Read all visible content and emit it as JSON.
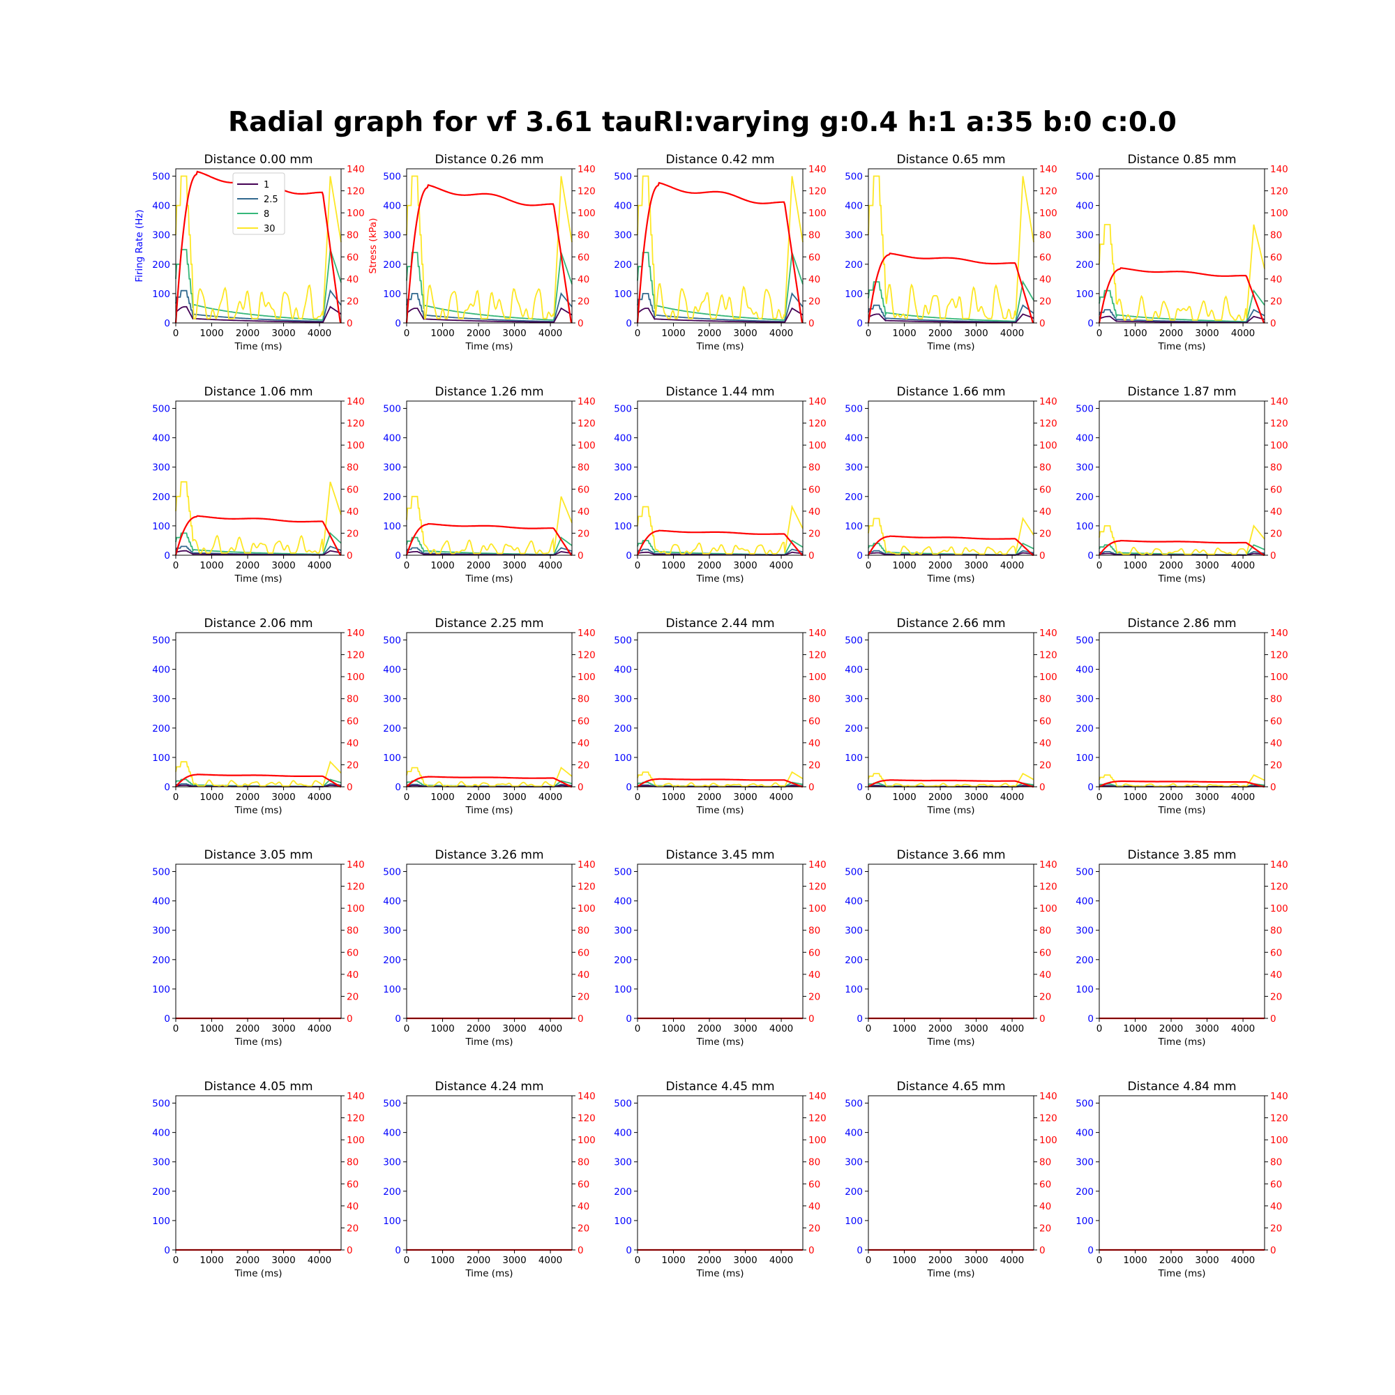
{
  "figure": {
    "title": "Radial graph for vf 3.61 tauRI:varying g:0.4 h:1 a:35 b:0 c:0.0",
    "xlabel": "Time (ms)",
    "ylabel_left": "Firing Rate (Hz)",
    "ylabel_right": "Stress (kPa)",
    "legend": [
      "1",
      "2.5",
      "8",
      "30"
    ]
  },
  "colors": {
    "series_1": "#440154",
    "series_2_5": "#31688e",
    "series_8": "#35b779",
    "series_30": "#fde725",
    "stress": "#ff0000",
    "left_axis": "#0000ff",
    "right_axis": "#ff0000"
  },
  "chart_data": {
    "type": "line",
    "layout": "5x5 small multiples",
    "x_ticks": [
      0,
      1000,
      2000,
      3000,
      4000
    ],
    "xlim": [
      0,
      4600
    ],
    "y_left_ticks": [
      0,
      100,
      200,
      300,
      400,
      500
    ],
    "y_left_lim": [
      0,
      525
    ],
    "y_right_ticks": [
      0,
      20,
      40,
      60,
      80,
      100,
      120,
      140
    ],
    "y_right_lim": [
      0,
      140
    ],
    "legend_placement": "upper center of first panel",
    "panels": [
      {
        "title": "Distance 0.00 mm",
        "peak_30": 500,
        "peak_8": 250,
        "peak_2_5": 110,
        "peak_1": 55,
        "stress_plateau": 135
      },
      {
        "title": "Distance 0.26 mm",
        "peak_30": 500,
        "peak_8": 240,
        "peak_2_5": 100,
        "peak_1": 50,
        "stress_plateau": 123
      },
      {
        "title": "Distance 0.42 mm",
        "peak_30": 500,
        "peak_8": 240,
        "peak_2_5": 100,
        "peak_1": 50,
        "stress_plateau": 125
      },
      {
        "title": "Distance 0.65 mm",
        "peak_30": 500,
        "peak_8": 140,
        "peak_2_5": 60,
        "peak_1": 30,
        "stress_plateau": 62
      },
      {
        "title": "Distance 0.85 mm",
        "peak_30": 335,
        "peak_8": 110,
        "peak_2_5": 45,
        "peak_1": 22,
        "stress_plateau": 49
      },
      {
        "title": "Distance 1.06 mm",
        "peak_30": 250,
        "peak_8": 75,
        "peak_2_5": 30,
        "peak_1": 15,
        "stress_plateau": 35
      },
      {
        "title": "Distance 1.26 mm",
        "peak_30": 200,
        "peak_8": 60,
        "peak_2_5": 25,
        "peak_1": 12,
        "stress_plateau": 28
      },
      {
        "title": "Distance 1.44 mm",
        "peak_30": 165,
        "peak_8": 50,
        "peak_2_5": 20,
        "peak_1": 10,
        "stress_plateau": 22
      },
      {
        "title": "Distance 1.66 mm",
        "peak_30": 125,
        "peak_8": 40,
        "peak_2_5": 15,
        "peak_1": 8,
        "stress_plateau": 17
      },
      {
        "title": "Distance 1.87 mm",
        "peak_30": 100,
        "peak_8": 35,
        "peak_2_5": 12,
        "peak_1": 6,
        "stress_plateau": 13
      },
      {
        "title": "Distance 2.06 mm",
        "peak_30": 85,
        "peak_8": 25,
        "peak_2_5": 10,
        "peak_1": 5,
        "stress_plateau": 11
      },
      {
        "title": "Distance 2.25 mm",
        "peak_30": 65,
        "peak_8": 20,
        "peak_2_5": 8,
        "peak_1": 4,
        "stress_plateau": 9
      },
      {
        "title": "Distance 2.44 mm",
        "peak_30": 50,
        "peak_8": 15,
        "peak_2_5": 6,
        "peak_1": 3,
        "stress_plateau": 7
      },
      {
        "title": "Distance 2.66 mm",
        "peak_30": 45,
        "peak_8": 12,
        "peak_2_5": 5,
        "peak_1": 2,
        "stress_plateau": 6
      },
      {
        "title": "Distance 2.86 mm",
        "peak_30": 40,
        "peak_8": 10,
        "peak_2_5": 4,
        "peak_1": 2,
        "stress_plateau": 5
      },
      {
        "title": "Distance 3.05 mm",
        "peak_30": 0,
        "peak_8": 0,
        "peak_2_5": 0,
        "peak_1": 0,
        "stress_plateau": 0
      },
      {
        "title": "Distance 3.26 mm",
        "peak_30": 0,
        "peak_8": 0,
        "peak_2_5": 0,
        "peak_1": 0,
        "stress_plateau": 0
      },
      {
        "title": "Distance 3.45 mm",
        "peak_30": 0,
        "peak_8": 0,
        "peak_2_5": 0,
        "peak_1": 0,
        "stress_plateau": 0
      },
      {
        "title": "Distance 3.66 mm",
        "peak_30": 0,
        "peak_8": 0,
        "peak_2_5": 0,
        "peak_1": 0,
        "stress_plateau": 0
      },
      {
        "title": "Distance 3.85 mm",
        "peak_30": 0,
        "peak_8": 0,
        "peak_2_5": 0,
        "peak_1": 0,
        "stress_plateau": 0
      },
      {
        "title": "Distance 4.05 mm",
        "peak_30": 0,
        "peak_8": 0,
        "peak_2_5": 0,
        "peak_1": 0,
        "stress_plateau": 0
      },
      {
        "title": "Distance 4.24 mm",
        "peak_30": 0,
        "peak_8": 0,
        "peak_2_5": 0,
        "peak_1": 0,
        "stress_plateau": 0
      },
      {
        "title": "Distance 4.45 mm",
        "peak_30": 0,
        "peak_8": 0,
        "peak_2_5": 0,
        "peak_1": 0,
        "stress_plateau": 0
      },
      {
        "title": "Distance 4.65 mm",
        "peak_30": 0,
        "peak_8": 0,
        "peak_2_5": 0,
        "peak_1": 0,
        "stress_plateau": 0
      },
      {
        "title": "Distance 4.84 mm",
        "peak_30": 0,
        "peak_8": 0,
        "peak_2_5": 0,
        "peak_1": 0,
        "stress_plateau": 0
      }
    ]
  }
}
